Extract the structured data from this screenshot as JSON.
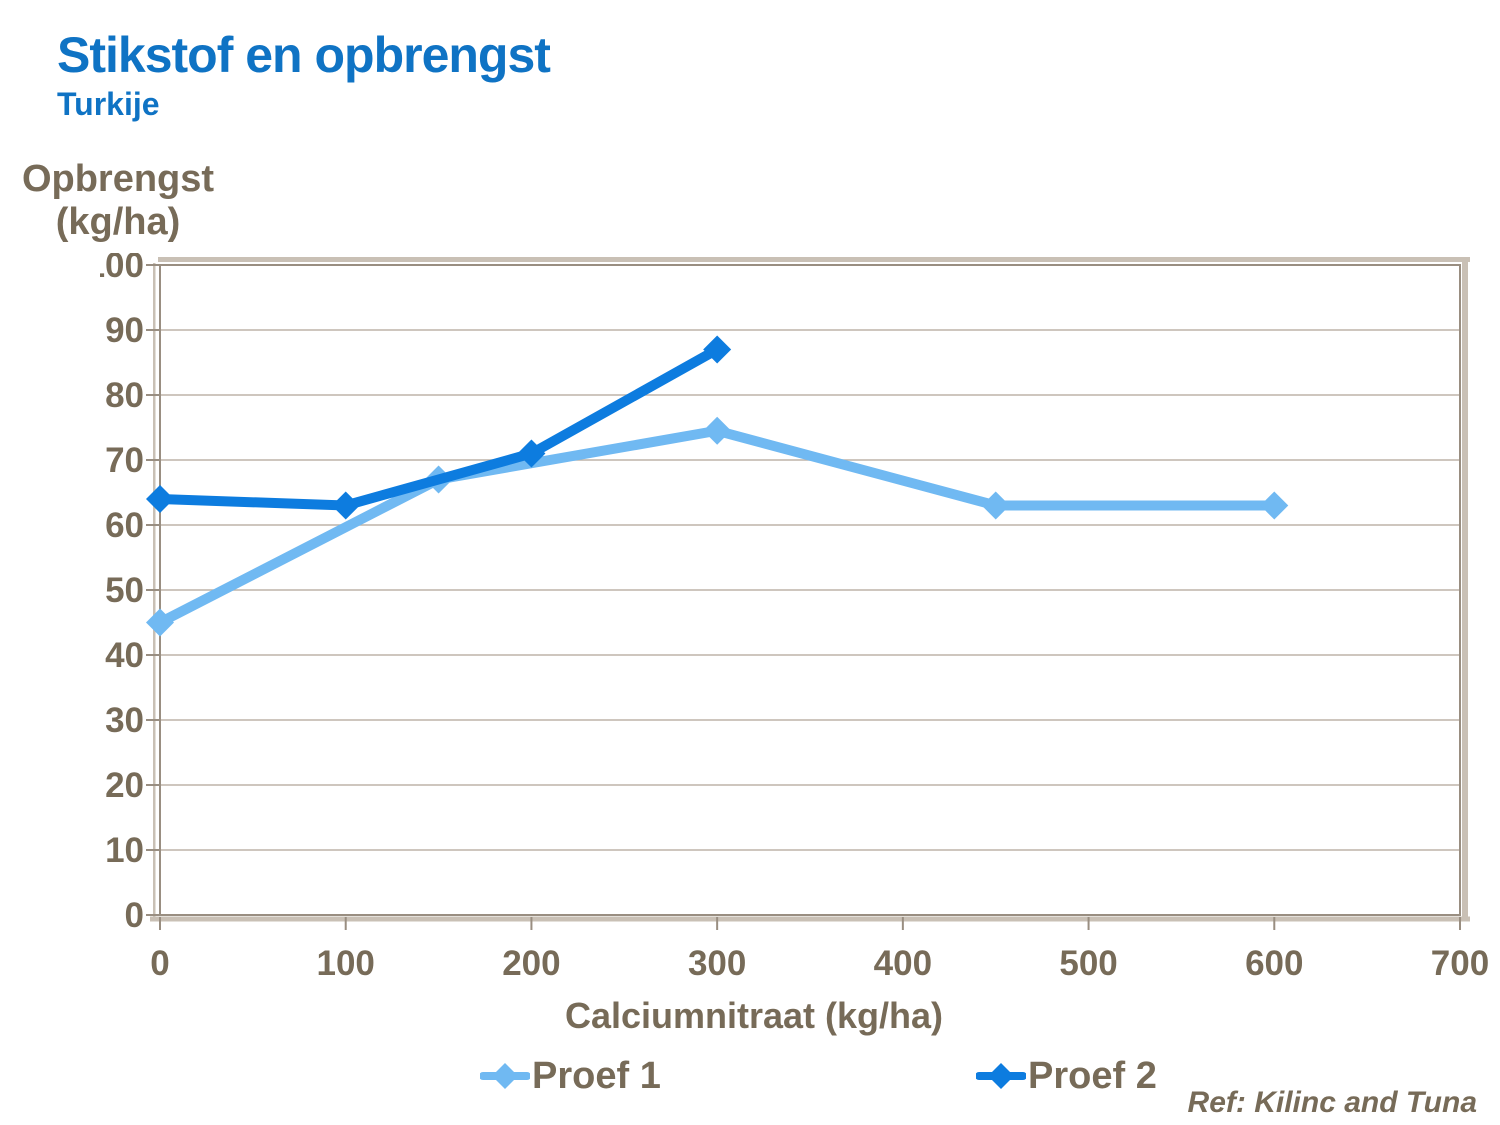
{
  "chart_data": {
    "type": "line",
    "title": "Stikstof en opbrengst",
    "subtitle": "Turkije",
    "xlabel": "Calciumnitraat (kg/ha)",
    "ylabel": "Opbrengst (kg/ha)",
    "ylabel_lines": [
      "Opbrengst",
      "(kg/ha)"
    ],
    "xlim": [
      0,
      700
    ],
    "ylim": [
      0,
      100
    ],
    "xticks": [
      0,
      100,
      200,
      300,
      400,
      500,
      600,
      700
    ],
    "yticks": [
      0,
      10,
      20,
      30,
      40,
      50,
      60,
      70,
      80,
      90,
      100
    ],
    "grid": "horizontal",
    "legend_position": "bottom",
    "series": [
      {
        "name": "Proef 1",
        "color": "#70b9f2",
        "x": [
          0,
          150,
          300,
          450,
          600
        ],
        "y": [
          45,
          67,
          74.5,
          63,
          63
        ]
      },
      {
        "name": "Proef 2",
        "color": "#0d7cdf",
        "x": [
          0,
          100,
          200,
          300
        ],
        "y": [
          64,
          63,
          71,
          87
        ]
      }
    ]
  },
  "footer": {
    "ref": "Ref: Kilinc and Tuna"
  },
  "palette": {
    "title_blue": "#0f73c4",
    "axis_text": "#776b58",
    "grid_line": "#bdb4a8",
    "axis_line": "#998e81",
    "axis_shadow": "#c9c0b5"
  }
}
